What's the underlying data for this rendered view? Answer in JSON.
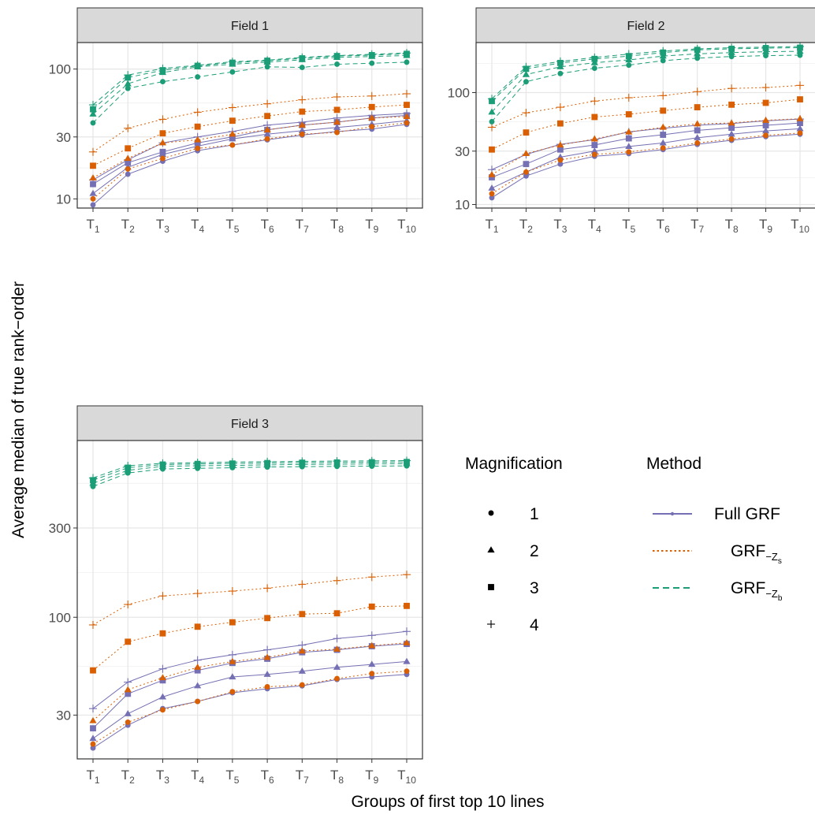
{
  "ylabel": "Average median of true rank−order",
  "xlabel": "Groups of first top 10 lines",
  "x_tick_base": "T",
  "x_tick_subs": [
    "1",
    "2",
    "3",
    "4",
    "5",
    "6",
    "7",
    "8",
    "9",
    "10"
  ],
  "methods": [
    {
      "key": "full",
      "label": "Full GRF",
      "sub": "",
      "color": "#7570B3",
      "dash": "none"
    },
    {
      "key": "zs",
      "label": "GRF",
      "sub": "−Z",
      "subsub": "s",
      "color": "#D95F02",
      "dash": "dotted"
    },
    {
      "key": "zb",
      "label": "GRF",
      "sub": "−Z",
      "subsub": "b",
      "color": "#1B9E77",
      "dash": "dashed"
    }
  ],
  "legend": {
    "magnification_title": "Magnification",
    "method_title": "Method",
    "magnifications": [
      "1",
      "2",
      "3",
      "4"
    ],
    "shapes": [
      "circle",
      "triangle",
      "square",
      "plus"
    ]
  },
  "chart_data": [
    {
      "type": "line",
      "title": "Field 1",
      "yscale": "log",
      "ylim": [
        8.5,
        160
      ],
      "yticks": [
        10,
        30,
        100
      ],
      "series": {
        "full": [
          [
            9.0,
            15.5,
            19.5,
            23.5,
            26.0,
            28.5,
            31.0,
            33.0,
            34.5,
            37.5
          ],
          [
            11.0,
            17.5,
            22.0,
            25.5,
            29.0,
            31.5,
            33.5,
            35.5,
            37.5,
            40.0
          ],
          [
            13.0,
            19.0,
            23.0,
            27.0,
            30.0,
            34.0,
            37.0,
            39.0,
            42.0,
            44.0
          ],
          [
            14.0,
            20.0,
            27.0,
            30.0,
            33.0,
            37.0,
            39.0,
            42.0,
            44.0,
            45.5
          ]
        ],
        "zs": [
          [
            10.0,
            17.0,
            20.5,
            24.5,
            26.0,
            29.0,
            31.5,
            32.5,
            36.0,
            38.5
          ],
          [
            14.5,
            20.5,
            27.0,
            28.5,
            31.5,
            34.0,
            37.0,
            39.0,
            42.0,
            43.0
          ],
          [
            18.0,
            24.5,
            32.0,
            36.0,
            40.0,
            43.5,
            47.0,
            48.5,
            51.0,
            53.0
          ],
          [
            23.0,
            35.0,
            41.0,
            46.5,
            50.5,
            54.0,
            58.0,
            61.0,
            62.0,
            64.5
          ]
        ],
        "zb": [
          [
            38.5,
            71.0,
            80.0,
            87.0,
            95.0,
            104.0,
            103.0,
            109.0,
            111.0,
            113.0
          ],
          [
            45.0,
            77.0,
            94.0,
            104.0,
            109.0,
            113.0,
            118.0,
            123.0,
            125.0,
            127.0
          ],
          [
            49.0,
            86.0,
            98.0,
            106.0,
            112.0,
            116.0,
            121.0,
            126.0,
            128.0,
            131.0
          ],
          [
            53.0,
            90.0,
            101.0,
            107.0,
            114.0,
            117.0,
            123.0,
            127.0,
            130.0,
            133.0
          ]
        ]
      }
    },
    {
      "type": "line",
      "title": "Field 2",
      "yscale": "log",
      "ylim": [
        9.3,
        280
      ],
      "yticks": [
        10,
        30,
        100
      ],
      "series": {
        "full": [
          [
            11.5,
            18.0,
            23.0,
            27.0,
            28.5,
            31.0,
            34.5,
            37.5,
            40.5,
            42.5
          ],
          [
            14.0,
            19.5,
            26.5,
            30.0,
            33.0,
            35.5,
            39.5,
            42.5,
            45.5,
            47.5
          ],
          [
            17.5,
            23.0,
            31.0,
            34.0,
            39.0,
            42.0,
            46.0,
            48.5,
            51.0,
            53.5
          ],
          [
            20.5,
            28.0,
            34.5,
            38.0,
            44.5,
            48.0,
            51.0,
            53.0,
            56.0,
            58.0
          ]
        ],
        "zs": [
          [
            12.5,
            19.5,
            25.0,
            28.0,
            29.5,
            32.0,
            35.5,
            38.5,
            41.5,
            43.5
          ],
          [
            18.5,
            28.5,
            34.0,
            38.5,
            44.5,
            49.0,
            52.5,
            53.5,
            56.5,
            58.5
          ],
          [
            31.0,
            44.0,
            53.0,
            60.5,
            64.0,
            69.0,
            74.0,
            78.0,
            81.0,
            87.0
          ],
          [
            49.0,
            66.0,
            74.0,
            84.0,
            90.0,
            94.0,
            102.0,
            109.0,
            111.0,
            116.0
          ]
        ],
        "zb": [
          [
            55.0,
            125.0,
            148.0,
            165.0,
            176.0,
            193.0,
            203.0,
            210.0,
            214.0,
            216.0
          ],
          [
            67.0,
            145.0,
            170.0,
            185.0,
            196.0,
            212.0,
            222.0,
            228.0,
            232.0,
            234.0
          ],
          [
            84.0,
            163.0,
            184.0,
            200.0,
            212.0,
            228.0,
            241.0,
            246.0,
            250.0,
            252.0
          ],
          [
            88.0,
            170.0,
            190.0,
            206.0,
            221.0,
            235.0,
            246.0,
            252.0,
            255.0,
            258.0
          ]
        ]
      }
    },
    {
      "type": "line",
      "title": "Field 3",
      "yscale": "log",
      "ylim": [
        17.5,
        880
      ],
      "yticks": [
        30,
        100,
        300
      ],
      "series": {
        "full": [
          [
            20.0,
            26.5,
            32.5,
            35.5,
            39.5,
            41.5,
            43.0,
            46.5,
            48.0,
            49.5
          ],
          [
            22.5,
            30.5,
            37.5,
            43.0,
            48.0,
            49.5,
            51.5,
            54.0,
            56.0,
            58.0
          ],
          [
            25.5,
            39.0,
            46.0,
            52.0,
            57.0,
            60.0,
            65.0,
            67.0,
            70.0,
            72.0
          ],
          [
            32.5,
            45.0,
            53.0,
            59.0,
            63.0,
            67.0,
            71.0,
            77.0,
            80.0,
            84.0
          ]
        ],
        "zs": [
          [
            21.0,
            27.5,
            32.0,
            35.5,
            40.0,
            42.5,
            43.5,
            47.0,
            50.0,
            51.5
          ],
          [
            28.0,
            41.0,
            47.5,
            54.0,
            58.0,
            61.0,
            66.0,
            67.5,
            70.5,
            73.0
          ],
          [
            52.0,
            74.0,
            82.0,
            89.0,
            94.0,
            99.0,
            104.0,
            105.0,
            114.0,
            115.0
          ],
          [
            91.0,
            117.0,
            130.0,
            134.0,
            138.0,
            143.0,
            150.0,
            157.0,
            164.0,
            169.0
          ]
        ],
        "zb": [
          [
            500.0,
            590.0,
            620.0,
            625.0,
            630.0,
            635.0,
            638.0,
            640.0,
            642.0,
            644.0
          ],
          [
            520.0,
            610.0,
            640.0,
            645.0,
            648.0,
            652.0,
            656.0,
            658.0,
            660.0,
            662.0
          ],
          [
            540.0,
            630.0,
            655.0,
            660.0,
            663.0,
            667.0,
            670.0,
            672.0,
            674.0,
            676.0
          ],
          [
            555.0,
            645.0,
            665.0,
            670.0,
            675.0,
            678.0,
            681.0,
            683.0,
            685.0,
            687.0
          ]
        ]
      }
    }
  ]
}
